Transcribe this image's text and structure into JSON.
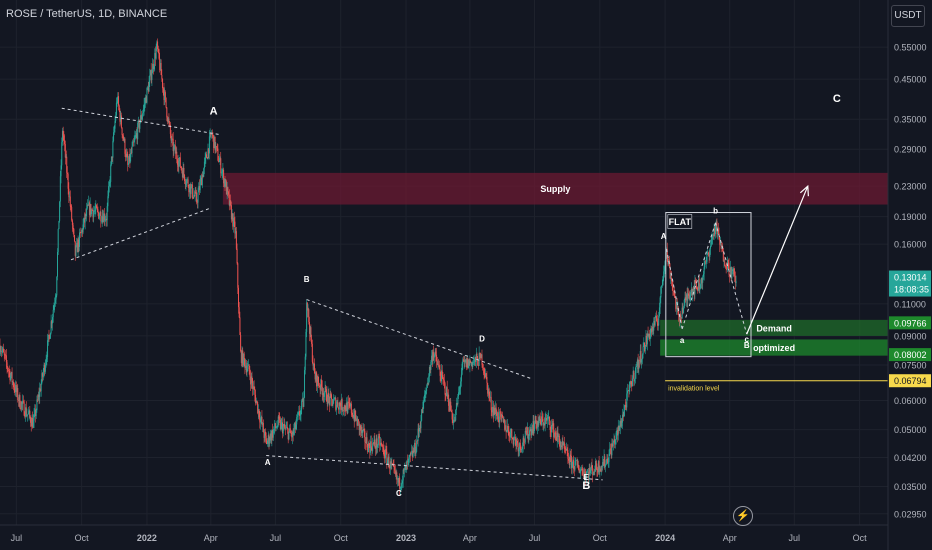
{
  "header": {
    "symbol_line": "ROSE / TetherUS, 1D, BINANCE"
  },
  "currency_button": "USDT",
  "chart_data": {
    "type": "candlestick",
    "title": "ROSE / TetherUS, 1D, BINANCE",
    "y_axis": {
      "scale": "log",
      "ticks": [
        0.55,
        0.45,
        0.35,
        0.29,
        0.23,
        0.19,
        0.16,
        0.11,
        0.09,
        0.075,
        0.06,
        0.05,
        0.042,
        0.035,
        0.0295
      ],
      "tick_labels": [
        "0.55000",
        "0.45000",
        "0.35000",
        "0.29000",
        "0.23000",
        "0.19000",
        "0.16000",
        "0.11000",
        "0.09000",
        "0.07500",
        "0.06000",
        "0.05000",
        "0.04200",
        "0.03500",
        "0.02950"
      ],
      "ylim": [
        0.0275,
        0.62
      ]
    },
    "x_axis": {
      "range": [
        "2021-06-08",
        "2024-11-10"
      ],
      "ticks": [
        {
          "date": "2021-07-01",
          "label": "Jul"
        },
        {
          "date": "2021-10-01",
          "label": "Oct"
        },
        {
          "date": "2022-01-01",
          "label": "2022"
        },
        {
          "date": "2022-04-01",
          "label": "Apr"
        },
        {
          "date": "2022-07-01",
          "label": "Jul"
        },
        {
          "date": "2022-10-01",
          "label": "Oct"
        },
        {
          "date": "2023-01-01",
          "label": "2023"
        },
        {
          "date": "2023-04-01",
          "label": "Apr"
        },
        {
          "date": "2023-07-01",
          "label": "Jul"
        },
        {
          "date": "2023-10-01",
          "label": "Oct"
        },
        {
          "date": "2024-01-01",
          "label": "2024"
        },
        {
          "date": "2024-04-01",
          "label": "Apr"
        },
        {
          "date": "2024-07-01",
          "label": "Jul"
        },
        {
          "date": "2024-10-01",
          "label": "Oct"
        }
      ]
    },
    "price_path": [
      {
        "date": "2021-06-08",
        "price": 0.085
      },
      {
        "date": "2021-07-05",
        "price": 0.06
      },
      {
        "date": "2021-07-25",
        "price": 0.052
      },
      {
        "date": "2021-08-10",
        "price": 0.075
      },
      {
        "date": "2021-08-26",
        "price": 0.12
      },
      {
        "date": "2021-09-04",
        "price": 0.33
      },
      {
        "date": "2021-09-22",
        "price": 0.15
      },
      {
        "date": "2021-10-10",
        "price": 0.2
      },
      {
        "date": "2021-11-05",
        "price": 0.19
      },
      {
        "date": "2021-11-20",
        "price": 0.4
      },
      {
        "date": "2021-12-05",
        "price": 0.26
      },
      {
        "date": "2021-12-28",
        "price": 0.38
      },
      {
        "date": "2022-01-15",
        "price": 0.55
      },
      {
        "date": "2022-02-05",
        "price": 0.3
      },
      {
        "date": "2022-02-25",
        "price": 0.24
      },
      {
        "date": "2022-03-12",
        "price": 0.21
      },
      {
        "date": "2022-04-02",
        "price": 0.32
      },
      {
        "date": "2022-04-20",
        "price": 0.24
      },
      {
        "date": "2022-05-06",
        "price": 0.17
      },
      {
        "date": "2022-05-13",
        "price": 0.08
      },
      {
        "date": "2022-05-25",
        "price": 0.072
      },
      {
        "date": "2022-06-18",
        "price": 0.046
      },
      {
        "date": "2022-07-05",
        "price": 0.052
      },
      {
        "date": "2022-07-25",
        "price": 0.048
      },
      {
        "date": "2022-08-10",
        "price": 0.06
      },
      {
        "date": "2022-08-14",
        "price": 0.113
      },
      {
        "date": "2022-08-25",
        "price": 0.07
      },
      {
        "date": "2022-09-15",
        "price": 0.06
      },
      {
        "date": "2022-10-15",
        "price": 0.057
      },
      {
        "date": "2022-11-09",
        "price": 0.045
      },
      {
        "date": "2022-11-25",
        "price": 0.046
      },
      {
        "date": "2022-12-22",
        "price": 0.0355
      },
      {
        "date": "2023-01-15",
        "price": 0.045
      },
      {
        "date": "2023-02-08",
        "price": 0.082
      },
      {
        "date": "2023-02-28",
        "price": 0.062
      },
      {
        "date": "2023-03-10",
        "price": 0.052
      },
      {
        "date": "2023-03-22",
        "price": 0.075
      },
      {
        "date": "2023-04-18",
        "price": 0.078
      },
      {
        "date": "2023-05-01",
        "price": 0.058
      },
      {
        "date": "2023-06-10",
        "price": 0.045
      },
      {
        "date": "2023-07-01",
        "price": 0.052
      },
      {
        "date": "2023-07-20",
        "price": 0.053
      },
      {
        "date": "2023-08-20",
        "price": 0.041
      },
      {
        "date": "2023-09-12",
        "price": 0.038
      },
      {
        "date": "2023-10-10",
        "price": 0.041
      },
      {
        "date": "2023-10-28",
        "price": 0.05
      },
      {
        "date": "2023-11-15",
        "price": 0.068
      },
      {
        "date": "2023-12-08",
        "price": 0.09
      },
      {
        "date": "2023-12-22",
        "price": 0.1
      },
      {
        "date": "2024-01-02",
        "price": 0.155
      },
      {
        "date": "2024-01-20",
        "price": 0.1
      },
      {
        "date": "2024-02-05",
        "price": 0.12
      },
      {
        "date": "2024-02-20",
        "price": 0.125
      },
      {
        "date": "2024-03-12",
        "price": 0.18
      },
      {
        "date": "2024-03-22",
        "price": 0.15
      },
      {
        "date": "2024-04-02",
        "price": 0.135
      },
      {
        "date": "2024-04-10",
        "price": 0.128
      }
    ],
    "zones": [
      {
        "name": "supply",
        "label": "Supply",
        "from": "2022-04-18",
        "to": "2024-11-10",
        "low": 0.205,
        "high": 0.25,
        "color": "#6b1a32"
      },
      {
        "name": "demand",
        "label": "Demand",
        "from": "2023-12-25",
        "to": "2024-11-10",
        "low": 0.09,
        "high": 0.0995,
        "color": "#1f6b2a"
      },
      {
        "name": "optimized",
        "label": "optimized",
        "from": "2023-12-25",
        "to": "2024-11-10",
        "low": 0.0795,
        "high": 0.088,
        "color": "#1e8a2c"
      }
    ],
    "price_labels": [
      {
        "name": "current",
        "lines": [
          "0.13014",
          "18:08:35"
        ],
        "value": 0.13014,
        "bg": "#26a69a",
        "fg": "#ffffff"
      },
      {
        "name": "demand-top",
        "lines": [
          "0.09766"
        ],
        "value": 0.09766,
        "bg": "#1e8a2c",
        "fg": "#ffffff"
      },
      {
        "name": "optimized-bottom",
        "lines": [
          "0.08002"
        ],
        "value": 0.08002,
        "bg": "#1e8a2c",
        "fg": "#ffffff"
      },
      {
        "name": "invalidation",
        "lines": [
          "0.06794"
        ],
        "value": 0.06794,
        "bg": "#f7d94c",
        "fg": "#131722"
      }
    ],
    "invalidation": {
      "label": "invalidation level",
      "value": 0.06794,
      "from": "2024-01-01",
      "to": "2024-11-10",
      "color": "#f7d94c"
    },
    "trendlines": [
      {
        "name": "triangle-upper",
        "from": {
          "date": "2021-09-03",
          "price": 0.375
        },
        "to": {
          "date": "2022-04-13",
          "price": 0.318
        }
      },
      {
        "name": "triangle-lower",
        "from": {
          "date": "2021-09-16",
          "price": 0.145
        },
        "to": {
          "date": "2022-03-30",
          "price": 0.2
        }
      },
      {
        "name": "wedge-upper",
        "from": {
          "date": "2022-08-14",
          "price": 0.113
        },
        "to": {
          "date": "2023-06-25",
          "price": 0.069
        }
      },
      {
        "name": "wedge-lower",
        "from": {
          "date": "2022-06-18",
          "price": 0.0425
        },
        "to": {
          "date": "2023-10-05",
          "price": 0.0365
        }
      },
      {
        "name": "flat-1",
        "from": {
          "date": "2024-01-03",
          "price": 0.155
        },
        "to": {
          "date": "2024-01-25",
          "price": 0.094
        }
      },
      {
        "name": "flat-2",
        "from": {
          "date": "2024-01-25",
          "price": 0.094
        },
        "to": {
          "date": "2024-03-12",
          "price": 0.183
        }
      },
      {
        "name": "flat-3",
        "from": {
          "date": "2024-03-12",
          "price": 0.183
        },
        "to": {
          "date": "2024-04-25",
          "price": 0.091
        }
      }
    ],
    "projection_arrow": {
      "from": {
        "date": "2024-04-25",
        "price": 0.091
      },
      "to": {
        "date": "2024-07-20",
        "price": 0.23
      }
    },
    "flat_box": {
      "label": "FLAT",
      "from": "2024-01-02",
      "to": "2024-05-01",
      "low": 0.079,
      "high": 0.195
    },
    "wave_labels": [
      {
        "text": "A",
        "date": "2022-04-05",
        "price": 0.36,
        "size": "big"
      },
      {
        "text": "B",
        "date": "2022-08-14",
        "price": 0.126,
        "size": "small"
      },
      {
        "text": "A",
        "date": "2022-06-20",
        "price": 0.04,
        "size": "small"
      },
      {
        "text": "C",
        "date": "2022-12-22",
        "price": 0.033,
        "size": "small"
      },
      {
        "text": "D",
        "date": "2023-04-18",
        "price": 0.087,
        "size": "small"
      },
      {
        "text": "E",
        "date": "2023-09-12",
        "price": 0.0365,
        "size": "small"
      },
      {
        "text": "B",
        "date": "2023-09-12",
        "price": 0.0345,
        "size": "big"
      },
      {
        "text": "C",
        "date": "2024-08-30",
        "price": 0.39,
        "size": "big"
      },
      {
        "text": "A",
        "date": "2023-12-30",
        "price": 0.165,
        "size": "small"
      },
      {
        "text": "b",
        "date": "2024-03-12",
        "price": 0.194,
        "size": "small"
      },
      {
        "text": "a",
        "date": "2024-01-25",
        "price": 0.086,
        "size": "small"
      },
      {
        "text": "c",
        "date": "2024-04-25",
        "price": 0.0865,
        "size": "small"
      },
      {
        "text": "B",
        "date": "2024-04-25",
        "price": 0.0835,
        "size": "small"
      }
    ]
  }
}
